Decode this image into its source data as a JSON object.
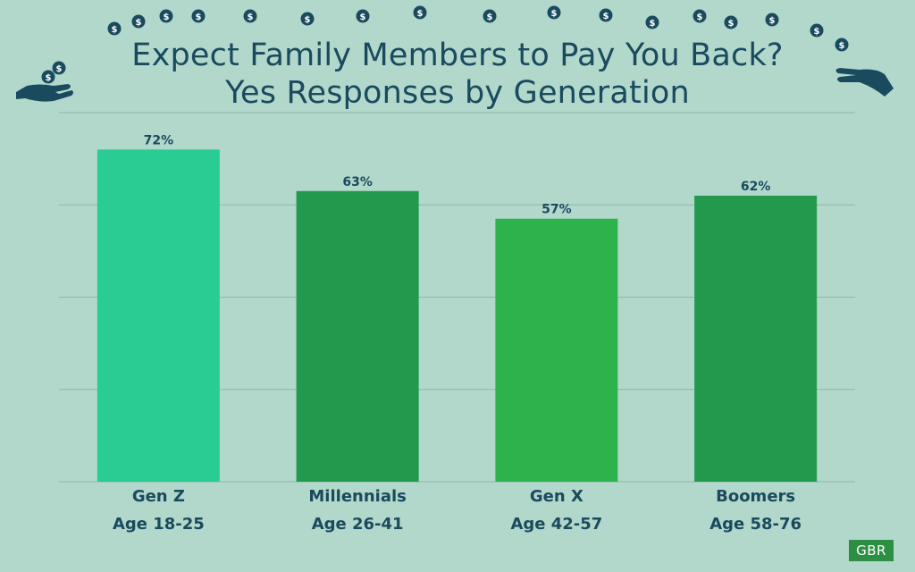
{
  "title_line1": "Expect Family Members to Pay You Back?",
  "title_line2": "Yes Responses by Generation",
  "logo_text": "GBR",
  "colors": {
    "background": "#b2d8cb",
    "title": "#1a4a5e",
    "gridline": "#8fb8aa",
    "bar_genz": "#29cc93",
    "bar_millennials": "#23994e",
    "bar_genx": "#2db34c",
    "bar_boomers": "#23994e",
    "coin": "#1a4a5e",
    "logo": "#2c8f43"
  },
  "icons": [
    "dollar-coin-icon",
    "giving-hand-icon",
    "receiving-hand-icon"
  ],
  "chart_data": {
    "type": "bar",
    "categories": [
      "Gen Z",
      "Millennials",
      "Gen X",
      "Boomers"
    ],
    "subcategories": [
      "Age 18-25",
      "Age 26-41",
      "Age 42-57",
      "Age 58-76"
    ],
    "values": [
      72,
      63,
      57,
      62
    ],
    "data_labels": [
      "72%",
      "63%",
      "57%",
      "62%"
    ],
    "ylim": [
      0,
      80
    ],
    "grid": true,
    "legend": "none"
  }
}
